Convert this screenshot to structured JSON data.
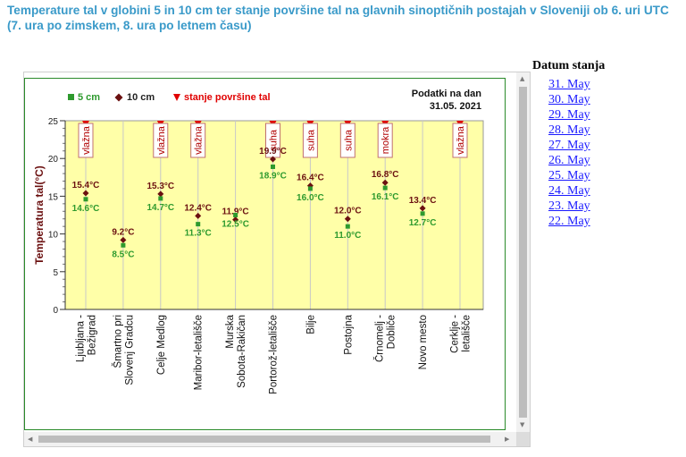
{
  "page_title": "Temperature tal v globini 5 in 10 cm ter stanje površine tal na glavnih sinoptičnih postajah v Sloveniji ob 6. uri UTC (7. ura po zimskem, 8. ura po letnem času)",
  "sidebar": {
    "heading": "Datum stanja",
    "dates": [
      "31. May",
      "30. May",
      "29. May",
      "28. May",
      "27. May",
      "26. May",
      "25. May",
      "24. May",
      "23. May",
      "22. May"
    ]
  },
  "colors": {
    "title": "#3a9ac9",
    "plot_bg": "#ffffa8",
    "series_5cm": "#2e9a2e",
    "series_10cm": "#6b1010",
    "surface": "#e00000",
    "link": "#1a1aff"
  },
  "chart_data": {
    "type": "scatter",
    "info_label": "Podatki na dan",
    "info_date": "31.05. 2021",
    "ylabel": "Temperatura tal(°C)",
    "xlabel": "",
    "ylim": [
      0,
      25
    ],
    "yticks": [
      0,
      5,
      10,
      15,
      20,
      25
    ],
    "grid": true,
    "legend": {
      "placement": "top-left",
      "entries": [
        "5 cm",
        "10 cm",
        "stanje površine tal"
      ]
    },
    "categories": [
      "Ljubljana - Bežigrad",
      "Šmartno pri Slovenj Gradcu",
      "Celje Medlog",
      "Maribor-letališče",
      "Murska Sobota-Rakičan",
      "Portorož-letališče",
      "Bilje",
      "Postojna",
      "Črnomelj - Dobliče",
      "Novo mesto",
      "Cerklje - letališče"
    ],
    "series": [
      {
        "name": "5 cm",
        "values": [
          14.6,
          8.5,
          14.7,
          11.3,
          12.5,
          18.9,
          16.0,
          11.0,
          16.1,
          12.7,
          null
        ]
      },
      {
        "name": "10 cm",
        "values": [
          15.4,
          9.2,
          15.3,
          12.4,
          11.9,
          19.9,
          16.4,
          12.0,
          16.8,
          13.4,
          null
        ]
      }
    ],
    "surface_state": [
      "vlažna",
      "",
      "vlažna",
      "vlažna",
      "",
      "suha",
      "suha",
      "suha",
      "mokra",
      "",
      "vlažna"
    ]
  }
}
